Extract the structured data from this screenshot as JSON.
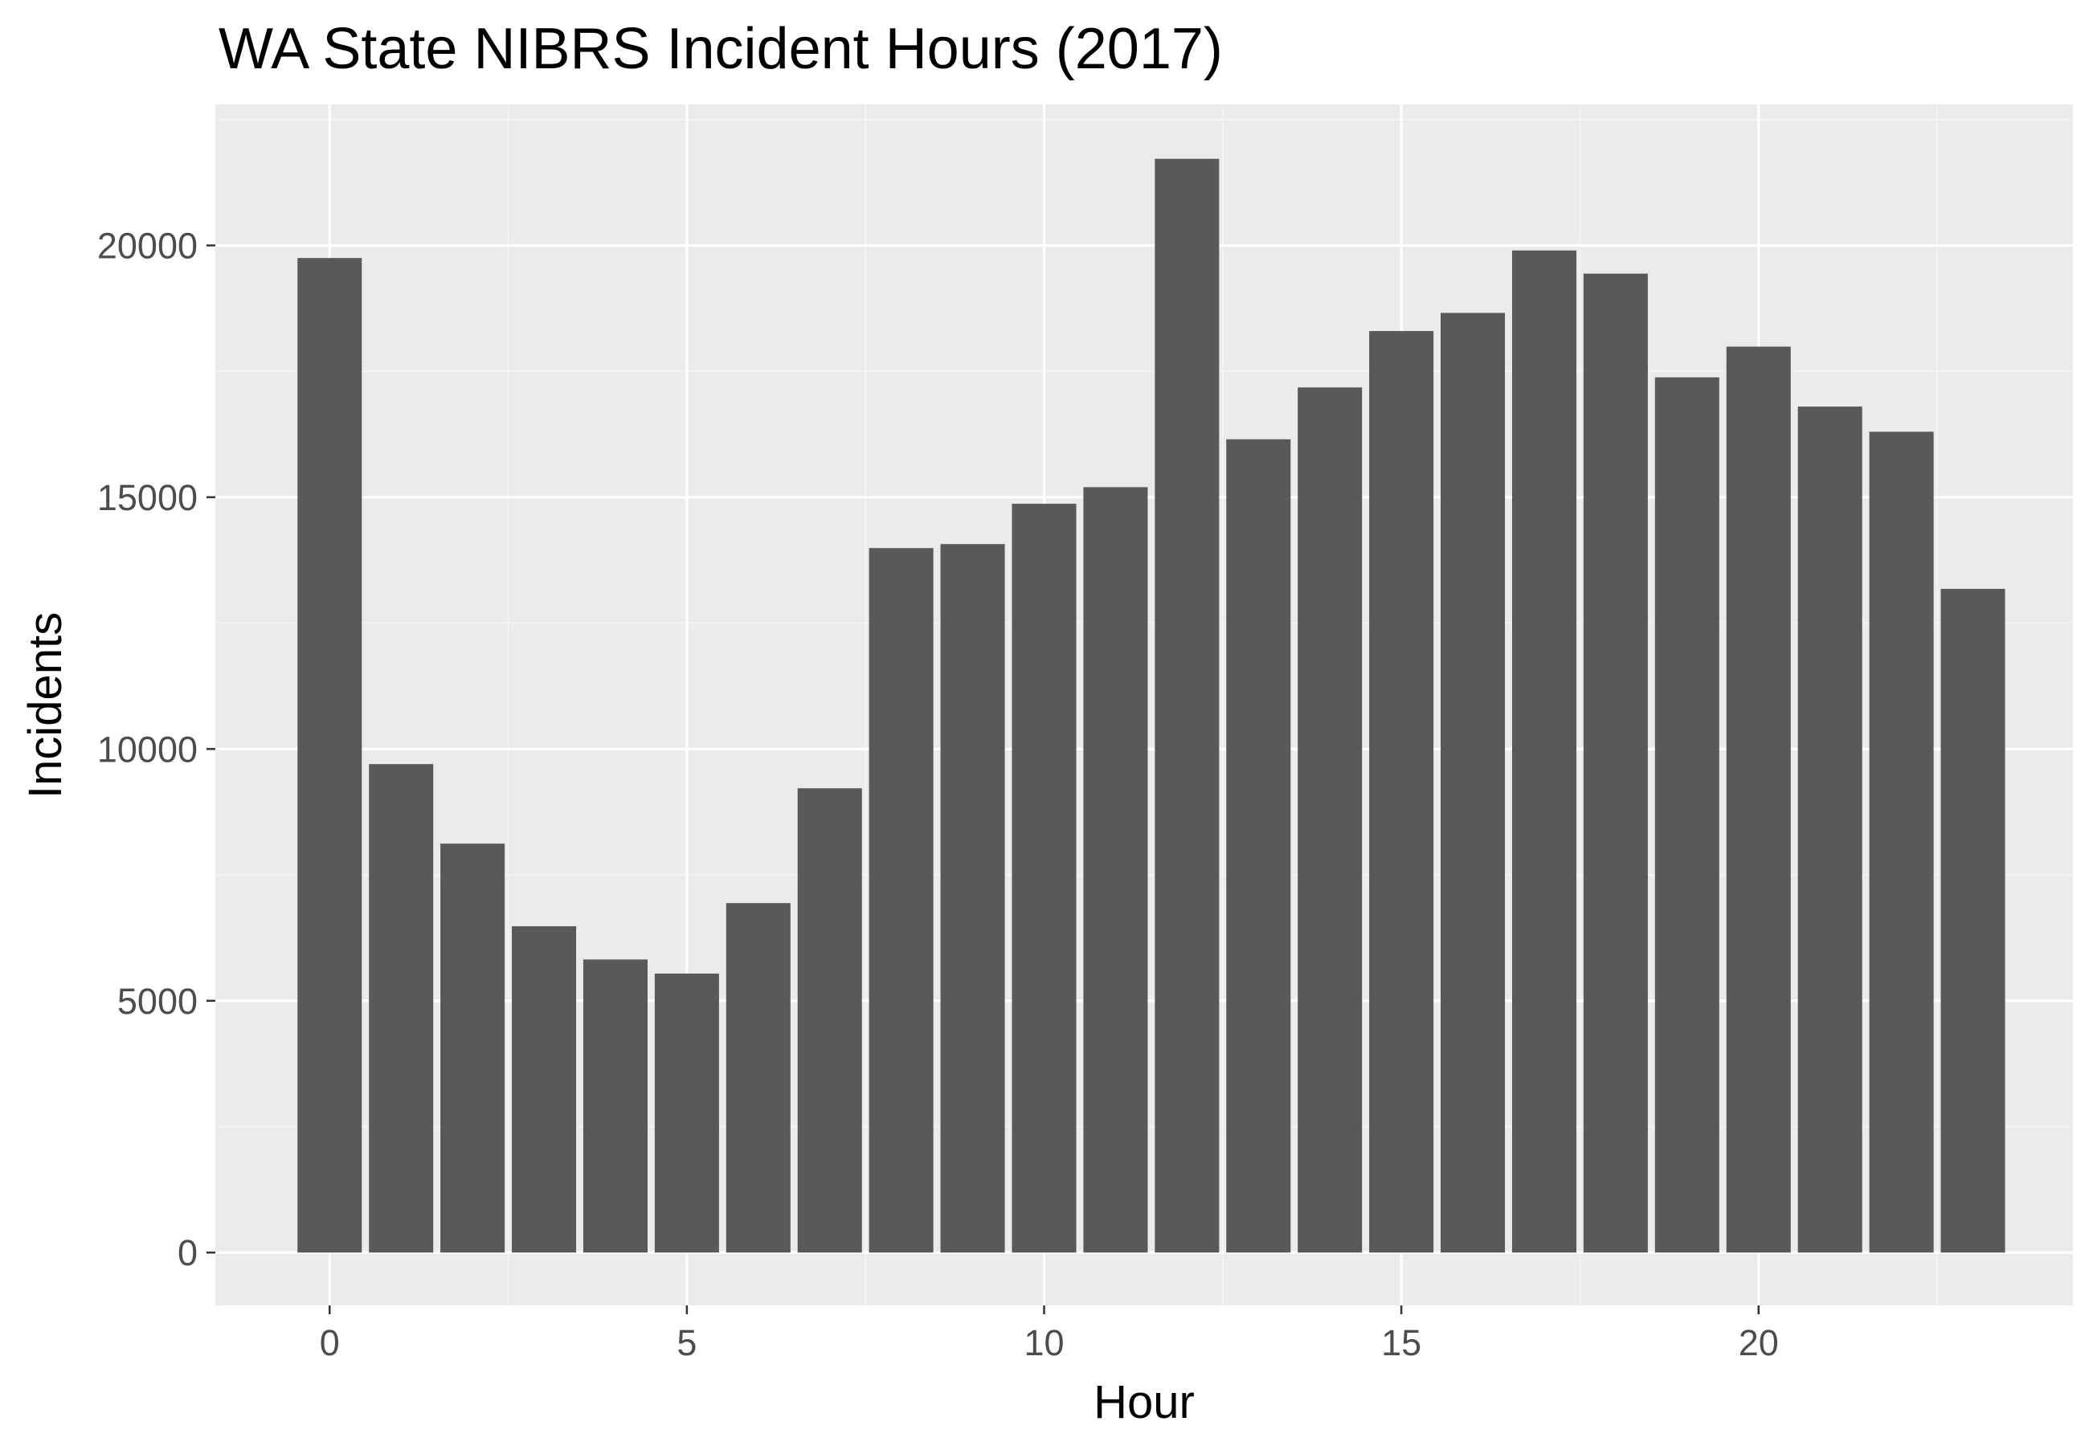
{
  "chart_data": {
    "type": "bar",
    "title": "WA State NIBRS Incident Hours (2017)",
    "xlabel": "Hour",
    "ylabel": "Incidents",
    "x": [
      0,
      1,
      2,
      3,
      4,
      5,
      6,
      7,
      8,
      9,
      10,
      11,
      12,
      13,
      14,
      15,
      16,
      17,
      18,
      19,
      20,
      21,
      22,
      23
    ],
    "values": [
      19750,
      9700,
      8120,
      6480,
      5820,
      5540,
      6940,
      9220,
      13990,
      14070,
      14870,
      15200,
      21720,
      16150,
      17180,
      18300,
      18660,
      19900,
      19440,
      17380,
      17990,
      16800,
      16300,
      13180
    ],
    "xlim": [
      -1.6,
      24.4
    ],
    "ylim": [
      -1050,
      22800
    ],
    "x_ticks": [
      0,
      5,
      10,
      15,
      20
    ],
    "x_tick_labels": [
      "0",
      "5",
      "10",
      "15",
      "20"
    ],
    "y_ticks": [
      0,
      5000,
      10000,
      15000,
      20000
    ],
    "y_tick_labels": [
      "0",
      "5000",
      "10000",
      "15000",
      "20000"
    ],
    "grid": true,
    "legend": "none",
    "colors": {
      "bar": "#595959",
      "panel": "#ebebeb",
      "grid_major": "#ffffff",
      "grid_minor": "#f5f5f5",
      "tick": "#333333",
      "tick_label": "#4d4d4d",
      "text": "#000000"
    }
  }
}
